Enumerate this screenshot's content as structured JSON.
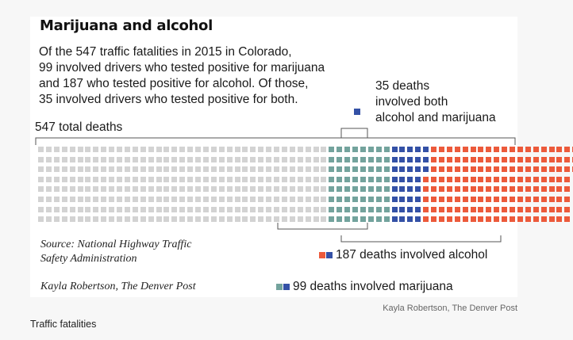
{
  "graphic": {
    "title": "Marijuana and alcohol",
    "intro_lines": [
      "Of the 547 traffic fatalities in 2015 in Colorado,",
      "99 involved drivers who tested positive for marijuana",
      "and 187 who tested positive for alcohol. Of those,",
      "35 involved drivers who tested positive for both."
    ],
    "both_label_lines": [
      "35 deaths",
      "involved both",
      "alcohol and marijuana"
    ],
    "total_label": "547 total deaths",
    "source_lines": [
      "Source: National Highway Traffic",
      "Safety Administration"
    ],
    "credit": "Kayla Robertson, The Denver Post",
    "alcohol_label": "187 deaths involved alcohol",
    "marijuana_label": "99 deaths involved marijuana"
  },
  "counts": {
    "total_deaths": 547,
    "marijuana_only": 64,
    "both": 35,
    "alcohol_only": 152
  },
  "colors": {
    "none": "#d3d3d3",
    "marijuana": "#73a39d",
    "both": "#3451a6",
    "alcohol": "#ec5a3b"
  },
  "photo_credit": "Kayla Robertson, The Denver Post",
  "caption": "Traffic fatalities"
}
